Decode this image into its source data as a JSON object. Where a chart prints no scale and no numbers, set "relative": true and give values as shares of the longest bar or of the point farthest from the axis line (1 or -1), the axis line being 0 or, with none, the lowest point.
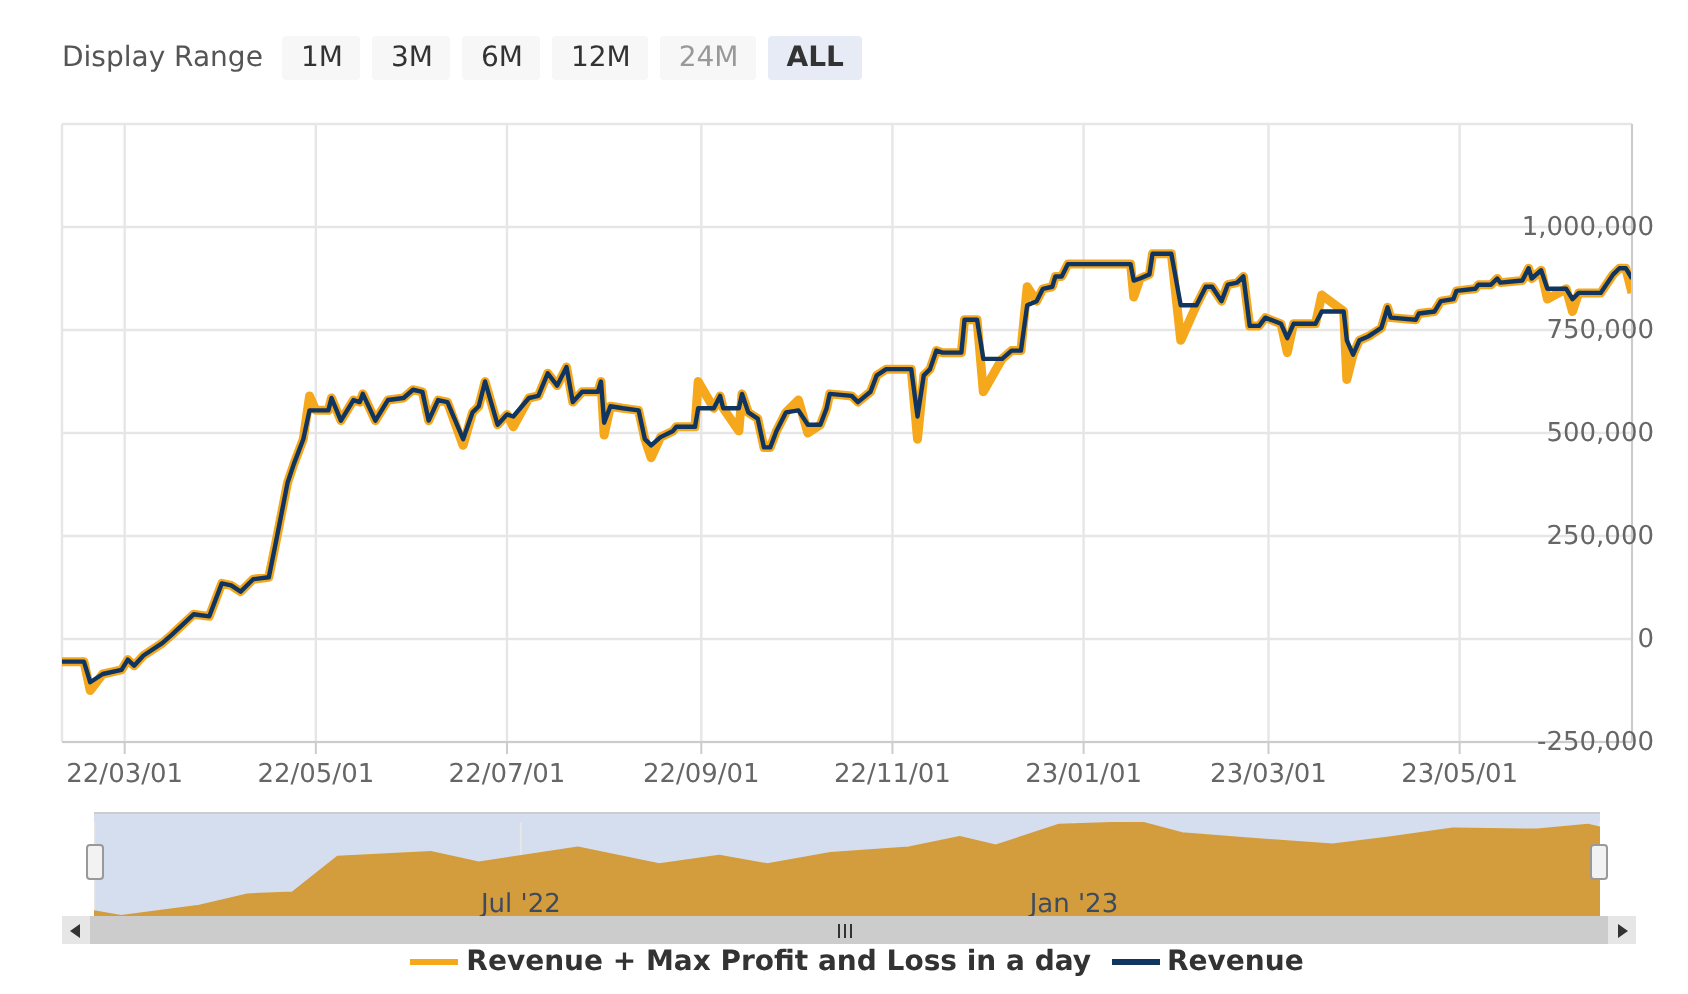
{
  "chart_data": [
    {
      "type": "line",
      "annotations": [
        "Display Range",
        "1M",
        "3M",
        "6M",
        "12M",
        "24M",
        "ALL"
      ],
      "x": [
        "2022-02-09",
        "2022-02-16",
        "2022-02-18",
        "2022-02-22",
        "2022-02-28",
        "2022-03-02",
        "2022-03-04",
        "2022-03-07",
        "2022-03-13",
        "2022-03-16",
        "2022-03-23",
        "2022-03-28",
        "2022-04-01",
        "2022-04-04",
        "2022-04-07",
        "2022-04-11",
        "2022-04-16",
        "2022-04-18",
        "2022-04-22",
        "2022-04-24",
        "2022-04-27",
        "2022-04-29",
        "2022-05-01",
        "2022-05-05",
        "2022-05-06",
        "2022-05-09",
        "2022-05-13",
        "2022-05-15",
        "2022-05-16",
        "2022-05-20",
        "2022-05-24",
        "2022-05-29",
        "2022-06-01",
        "2022-06-04",
        "2022-06-06",
        "2022-06-09",
        "2022-06-12",
        "2022-06-17",
        "2022-06-20",
        "2022-06-22",
        "2022-06-24",
        "2022-06-28",
        "2022-07-01",
        "2022-07-03",
        "2022-07-08",
        "2022-07-11",
        "2022-07-14",
        "2022-07-17",
        "2022-07-20",
        "2022-07-22",
        "2022-07-25",
        "2022-07-30",
        "2022-07-31",
        "2022-08-01",
        "2022-08-03",
        "2022-08-07",
        "2022-08-12",
        "2022-08-14",
        "2022-08-16",
        "2022-08-19",
        "2022-08-23",
        "2022-08-24",
        "2022-08-30",
        "2022-08-31",
        "2022-09-05",
        "2022-09-07",
        "2022-09-08",
        "2022-09-13",
        "2022-09-14",
        "2022-09-16",
        "2022-09-19",
        "2022-09-21",
        "2022-09-23",
        "2022-09-25",
        "2022-09-28",
        "2022-10-02",
        "2022-10-05",
        "2022-10-09",
        "2022-10-11",
        "2022-10-12",
        "2022-10-19",
        "2022-10-21",
        "2022-10-25",
        "2022-10-27",
        "2022-10-30",
        "2022-11-07",
        "2022-11-09",
        "2022-11-11",
        "2022-11-13",
        "2022-11-15",
        "2022-11-17",
        "2022-11-23",
        "2022-11-24",
        "2022-11-28",
        "2022-11-30",
        "2022-12-06",
        "2022-12-09",
        "2022-12-12",
        "2022-12-14",
        "2022-12-17",
        "2022-12-19",
        "2022-12-22",
        "2022-12-23",
        "2022-12-25",
        "2022-12-27",
        "2023-01-16",
        "2023-01-17",
        "2023-01-19",
        "2023-01-22",
        "2023-01-23",
        "2023-01-29",
        "2023-02-01",
        "2023-02-06",
        "2023-02-09",
        "2023-02-11",
        "2023-02-14",
        "2023-02-16",
        "2023-02-19",
        "2023-02-21",
        "2023-02-23",
        "2023-02-26",
        "2023-02-28",
        "2023-03-05",
        "2023-03-07",
        "2023-03-09",
        "2023-03-16",
        "2023-03-18",
        "2023-03-25",
        "2023-03-26",
        "2023-03-28",
        "2023-03-30",
        "2023-04-02",
        "2023-04-06",
        "2023-04-08",
        "2023-04-09",
        "2023-04-17",
        "2023-04-18",
        "2023-04-23",
        "2023-04-25",
        "2023-04-29",
        "2023-04-30",
        "2023-05-06",
        "2023-05-07",
        "2023-05-11",
        "2023-05-13",
        "2023-05-14",
        "2023-05-21",
        "2023-05-23",
        "2023-05-24",
        "2023-05-27",
        "2023-05-29",
        "2023-06-04",
        "2023-06-06",
        "2023-06-08",
        "2023-06-15",
        "2023-06-19",
        "2023-06-21",
        "2023-06-23",
        "2023-06-25"
      ],
      "series": [
        {
          "name": "Revenue + Max Profit and Loss in a day",
          "color": "#f5a81c",
          "values": [
            -55000,
            -55000,
            -125000,
            -85000,
            -75000,
            -50000,
            -65000,
            -40000,
            -10000,
            10000,
            60000,
            55000,
            135000,
            130000,
            115000,
            145000,
            150000,
            225000,
            380000,
            425000,
            485000,
            590000,
            555000,
            555000,
            585000,
            530000,
            580000,
            575000,
            595000,
            530000,
            580000,
            585000,
            605000,
            600000,
            530000,
            580000,
            575000,
            470000,
            550000,
            565000,
            625000,
            520000,
            545000,
            515000,
            585000,
            590000,
            645000,
            615000,
            660000,
            575000,
            600000,
            600000,
            625000,
            495000,
            565000,
            560000,
            555000,
            485000,
            440000,
            490000,
            505000,
            515000,
            515000,
            625000,
            560000,
            590000,
            560000,
            505000,
            595000,
            550000,
            535000,
            465000,
            465000,
            505000,
            550000,
            580000,
            500000,
            520000,
            560000,
            595000,
            590000,
            575000,
            600000,
            640000,
            655000,
            655000,
            485000,
            640000,
            655000,
            700000,
            695000,
            695000,
            775000,
            775000,
            600000,
            680000,
            700000,
            700000,
            855000,
            820000,
            850000,
            855000,
            880000,
            880000,
            910000,
            910000,
            830000,
            875000,
            885000,
            935000,
            935000,
            725000,
            810000,
            855000,
            855000,
            820000,
            860000,
            865000,
            880000,
            760000,
            760000,
            780000,
            765000,
            695000,
            765000,
            765000,
            835000,
            795000,
            630000,
            690000,
            725000,
            735000,
            755000,
            805000,
            780000,
            775000,
            790000,
            795000,
            820000,
            825000,
            845000,
            850000,
            860000,
            860000,
            875000,
            865000,
            870000,
            900000,
            875000,
            895000,
            825000,
            850000,
            795000,
            840000,
            840000,
            885000,
            900000,
            900000,
            840000
          ]
        },
        {
          "name": "Revenue",
          "color": "#0f3560",
          "values": [
            -55000,
            -55000,
            -105000,
            -85000,
            -75000,
            -50000,
            -65000,
            -40000,
            -10000,
            10000,
            60000,
            55000,
            135000,
            130000,
            115000,
            145000,
            150000,
            225000,
            380000,
            425000,
            485000,
            555000,
            555000,
            555000,
            585000,
            530000,
            580000,
            575000,
            595000,
            530000,
            580000,
            585000,
            605000,
            600000,
            530000,
            580000,
            575000,
            485000,
            550000,
            565000,
            625000,
            520000,
            545000,
            540000,
            585000,
            590000,
            645000,
            615000,
            660000,
            575000,
            600000,
            600000,
            625000,
            525000,
            565000,
            560000,
            555000,
            485000,
            470000,
            490000,
            505000,
            515000,
            515000,
            560000,
            560000,
            590000,
            560000,
            560000,
            595000,
            550000,
            535000,
            465000,
            465000,
            505000,
            550000,
            555000,
            520000,
            520000,
            560000,
            595000,
            590000,
            575000,
            600000,
            640000,
            655000,
            655000,
            540000,
            640000,
            655000,
            700000,
            695000,
            695000,
            775000,
            775000,
            680000,
            680000,
            700000,
            700000,
            810000,
            820000,
            850000,
            855000,
            880000,
            880000,
            910000,
            910000,
            870000,
            875000,
            885000,
            935000,
            935000,
            810000,
            810000,
            855000,
            855000,
            820000,
            860000,
            865000,
            880000,
            760000,
            760000,
            780000,
            765000,
            730000,
            765000,
            765000,
            795000,
            795000,
            725000,
            690000,
            725000,
            735000,
            755000,
            805000,
            780000,
            775000,
            790000,
            795000,
            820000,
            825000,
            845000,
            850000,
            860000,
            860000,
            875000,
            865000,
            870000,
            900000,
            875000,
            895000,
            850000,
            850000,
            825000,
            840000,
            840000,
            885000,
            900000,
            900000,
            875000
          ]
        }
      ],
      "xlim": [
        "2022-02-09",
        "2023-06-25"
      ],
      "xticks": [
        {
          "value": "2022-03-01",
          "label": "22/03/01"
        },
        {
          "value": "2022-05-01",
          "label": "22/05/01"
        },
        {
          "value": "2022-07-01",
          "label": "22/07/01"
        },
        {
          "value": "2022-09-01",
          "label": "22/09/01"
        },
        {
          "value": "2022-11-01",
          "label": "22/11/01"
        },
        {
          "value": "2023-01-01",
          "label": "23/01/01"
        },
        {
          "value": "2023-03-01",
          "label": "23/03/01"
        },
        {
          "value": "2023-05-01",
          "label": "23/05/01"
        }
      ],
      "ylim": [
        -250000,
        1250000
      ],
      "yticks": [
        {
          "value": -250000,
          "label": "-250,000"
        },
        0,
        {
          "value": 250000,
          "label": "250,000"
        },
        {
          "value": 500000,
          "label": "500,000"
        },
        {
          "value": 750000,
          "label": "750,000"
        },
        {
          "value": 1000000,
          "label": "1,000,000"
        }
      ],
      "grid": true,
      "legend": "bottom"
    },
    {
      "type": "area",
      "relative": true,
      "color": "#d39c3c",
      "x": [
        "2022-02-09",
        "2022-02-18",
        "2022-03-16",
        "2022-04-01",
        "2022-04-16",
        "2022-05-01",
        "2022-06-01",
        "2022-06-17",
        "2022-07-20",
        "2022-08-16",
        "2022-09-05",
        "2022-09-21",
        "2022-10-12",
        "2022-11-07",
        "2022-11-24",
        "2022-12-06",
        "2022-12-27",
        "2023-01-23",
        "2023-02-06",
        "2023-02-26",
        "2023-03-28",
        "2023-04-17",
        "2023-05-07",
        "2023-06-04",
        "2023-06-21",
        "2023-06-25"
      ],
      "values": [
        0.05,
        0,
        0.11,
        0.23,
        0.25,
        0.63,
        0.68,
        0.57,
        0.73,
        0.55,
        0.64,
        0.55,
        0.67,
        0.73,
        0.84,
        0.75,
        0.97,
        1,
        0.88,
        0.83,
        0.76,
        0.84,
        0.93,
        0.92,
        0.97,
        0.94
      ],
      "xlim": [
        "2022-02-09",
        "2023-06-25"
      ],
      "xticks": [
        {
          "value": "2022-07-01",
          "label": "Jul '22"
        },
        {
          "value": "2023-01-01",
          "label": "Jan '23"
        }
      ],
      "grid": "x",
      "tick_labels": "x"
    }
  ]
}
